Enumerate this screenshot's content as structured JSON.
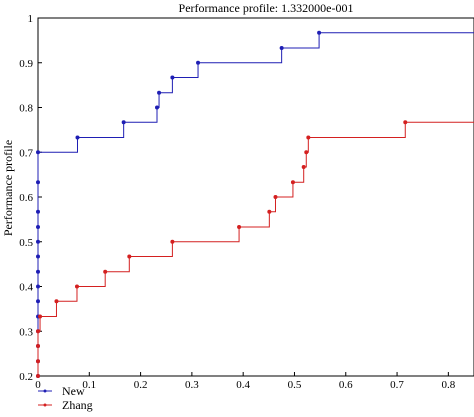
{
  "chart_data": {
    "type": "line",
    "title": "Performance profile: 1.332000e-001",
    "xlabel": "",
    "ylabel": "Performance profile",
    "xlim": [
      0,
      0.85
    ],
    "ylim": [
      0.2,
      1.0
    ],
    "x_ticks": [
      "0",
      "0.1",
      "0.2",
      "0.3",
      "0.4",
      "0.5",
      "0.6",
      "0.7",
      "0.8"
    ],
    "y_ticks": [
      "0.2",
      "0.3",
      "0.4",
      "0.5",
      "0.6",
      "0.7",
      "0.8",
      "0.9",
      "1"
    ],
    "grid": false,
    "legend_position": "below",
    "step": true,
    "series": [
      {
        "name": "New",
        "color": "#1f1fb4",
        "x": [
          0,
          0,
          0,
          0,
          0,
          0,
          0,
          0,
          0,
          0,
          0,
          0,
          0,
          0,
          0.077,
          0.167,
          0.232,
          0.236,
          0.262,
          0.312,
          0.475,
          0.548,
          0.85
        ],
        "y": [
          0.2,
          0.233,
          0.267,
          0.3,
          0.333,
          0.367,
          0.4,
          0.433,
          0.467,
          0.5,
          0.533,
          0.567,
          0.633,
          0.7,
          0.733,
          0.767,
          0.8,
          0.833,
          0.867,
          0.9,
          0.933,
          0.967,
          0.967
        ]
      },
      {
        "name": "Zhang",
        "color": "#d42020",
        "x": [
          0,
          0,
          0,
          0,
          0.004,
          0.036,
          0.076,
          0.131,
          0.178,
          0.262,
          0.392,
          0.451,
          0.463,
          0.497,
          0.518,
          0.523,
          0.527,
          0.716,
          0.85
        ],
        "y": [
          0.2,
          0.233,
          0.267,
          0.3,
          0.333,
          0.367,
          0.4,
          0.433,
          0.467,
          0.5,
          0.533,
          0.567,
          0.6,
          0.633,
          0.667,
          0.7,
          0.733,
          0.767,
          0.767
        ]
      }
    ]
  }
}
